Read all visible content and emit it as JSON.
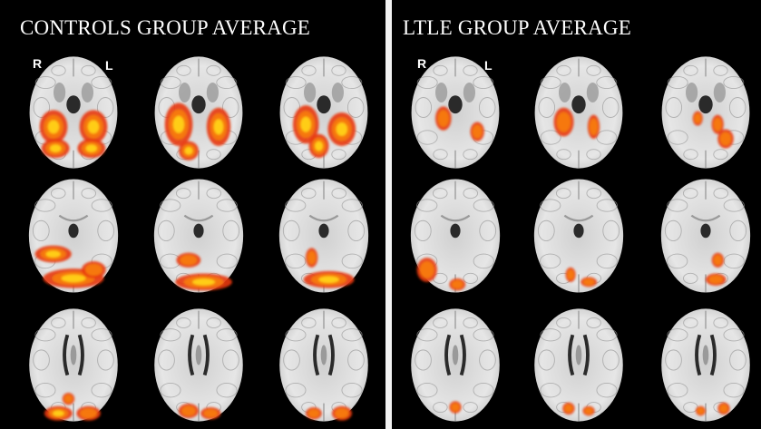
{
  "panels": {
    "controls": {
      "title": "CONTROLS GROUP AVERAGE",
      "orientation": {
        "right": "R",
        "left": "L"
      }
    },
    "ltle": {
      "title": "LTLE GROUP AVERAGE",
      "orientation": {
        "right": "R",
        "left": "L"
      }
    }
  },
  "colors": {
    "background": "#000000",
    "brain_light": "#e6e6e6",
    "brain_mid": "#9a9a9a",
    "brain_dark": "#2a2a2a",
    "activation_red": "#e8380c",
    "activation_orange": "#f77b12",
    "activation_yellow": "#ffd21a"
  }
}
